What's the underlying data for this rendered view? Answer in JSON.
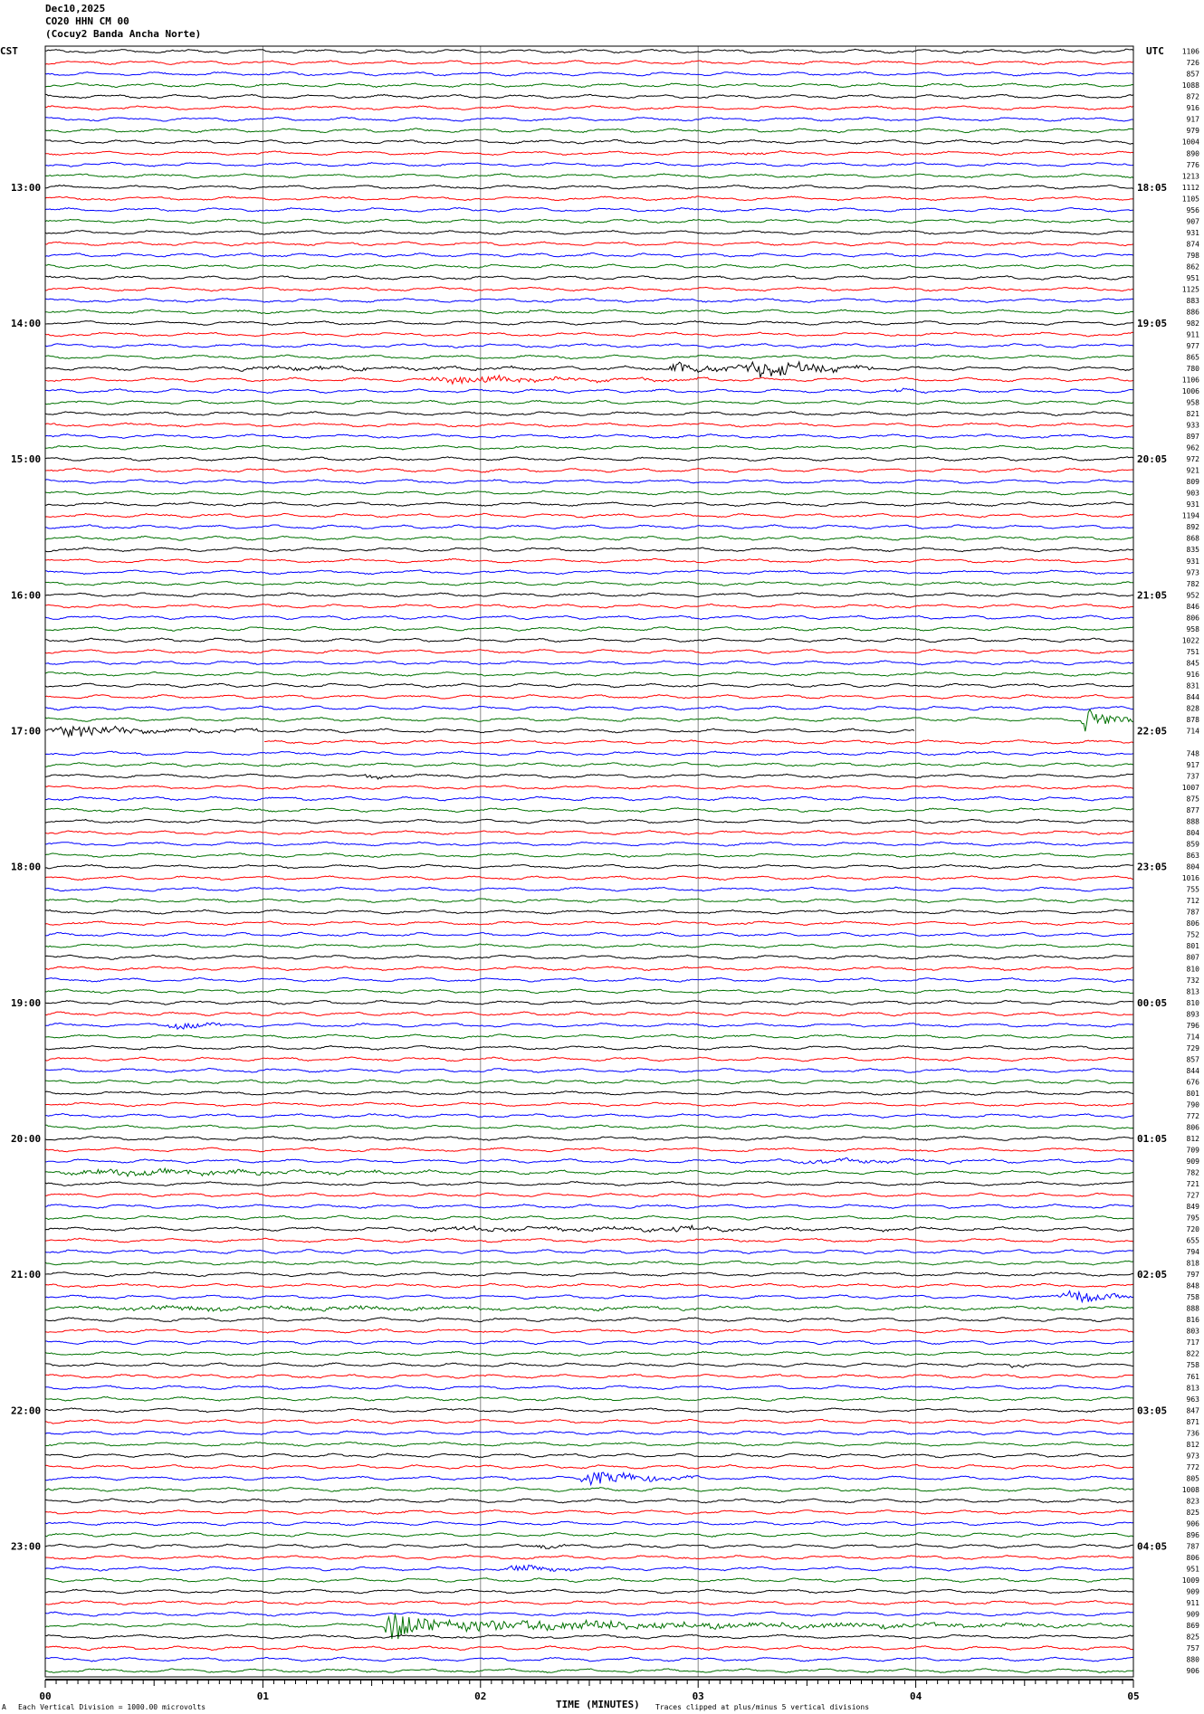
{
  "header": {
    "date": "Dec10,2025",
    "station": "CO20 HHN CM 00",
    "name": "(Cocuy2 Banda Ancha Norte)"
  },
  "chart_data": {
    "type": "line",
    "left_timezone": "CST",
    "right_timezone": "UTC",
    "left_hour_labels": [
      "13:00",
      "14:00",
      "15:00",
      "16:00",
      "17:00",
      "18:00",
      "19:00",
      "20:00",
      "21:00",
      "22:00",
      "23:00"
    ],
    "right_hour_labels": [
      "18:05",
      "19:05",
      "20:05",
      "21:05",
      "22:05",
      "23:05",
      "00:05",
      "01:05",
      "02:05",
      "03:05",
      "04:05"
    ],
    "traces_per_hour": 12,
    "minutes_per_trace": 5,
    "trace_colors": [
      "#000000",
      "#ff0000",
      "#0000ff",
      "#007000"
    ],
    "trace_values": [
      1106,
      726,
      857,
      1088,
      872,
      916,
      917,
      979,
      1004,
      890,
      776,
      1213,
      1112,
      1105,
      956,
      907,
      931,
      874,
      798,
      862,
      951,
      1125,
      883,
      886,
      982,
      911,
      977,
      865,
      780,
      1106,
      1006,
      958,
      821,
      933,
      897,
      962,
      972,
      921,
      809,
      903,
      931,
      1194,
      892,
      868,
      835,
      931,
      973,
      782,
      952,
      846,
      806,
      958,
      1022,
      751,
      845,
      916,
      831,
      844,
      828,
      878,
      714,
      null,
      748,
      917,
      737,
      1007,
      875,
      877,
      888,
      804,
      859,
      863,
      804,
      1016,
      755,
      712,
      787,
      806,
      752,
      801,
      807,
      810,
      732,
      813,
      810,
      893,
      796,
      714,
      729,
      857,
      844,
      676,
      801,
      790,
      772,
      806,
      812,
      709,
      909,
      782,
      721,
      727,
      849,
      795,
      720,
      655,
      794,
      818,
      797,
      848,
      758,
      888,
      816,
      803,
      717,
      822,
      758,
      761,
      813,
      963,
      847,
      871,
      736,
      812,
      973,
      772,
      805,
      1008,
      823,
      825,
      906,
      896,
      787,
      806,
      951,
      1009,
      909,
      911,
      909,
      869,
      825,
      757,
      880,
      906
    ],
    "events": [
      {
        "trace": 9,
        "start": 3.1,
        "end": 3.4,
        "amp": 1.2
      },
      {
        "trace": 23,
        "start": 0.85,
        "end": 0.95,
        "amp": 1.0
      },
      {
        "trace": 23,
        "start": 2.15,
        "end": 2.3,
        "amp": 1.0
      },
      {
        "trace": 28,
        "start": 0.7,
        "end": 4.0,
        "amp": 1.2
      },
      {
        "trace": 28,
        "start": 2.85,
        "end": 3.25,
        "amp": 4
      },
      {
        "trace": 28,
        "start": 3.2,
        "end": 3.8,
        "amp": 7
      },
      {
        "trace": 29,
        "start": 1.7,
        "end": 3.1,
        "amp": 2.5
      },
      {
        "trace": 30,
        "start": 3.9,
        "end": 4.05,
        "amp": 1.2
      },
      {
        "trace": 59,
        "start": 4.75,
        "end": 5.0,
        "amp": 9
      },
      {
        "trace": 60,
        "start": 0.0,
        "end": 1.0,
        "amp": 4
      },
      {
        "trace": 64,
        "start": 1.45,
        "end": 1.7,
        "amp": 1.5
      },
      {
        "trace": 86,
        "start": 0.55,
        "end": 1.0,
        "amp": 2.5
      },
      {
        "trace": 98,
        "start": 3.3,
        "end": 5.0,
        "amp": 1.2
      },
      {
        "trace": 99,
        "start": 0.0,
        "end": 2.6,
        "amp": 1.8
      },
      {
        "trace": 104,
        "start": 1.6,
        "end": 5.0,
        "amp": 1.4
      },
      {
        "trace": 104,
        "start": 2.85,
        "end": 3.2,
        "amp": 2.2
      },
      {
        "trace": 110,
        "start": 4.65,
        "end": 5.0,
        "amp": 6
      },
      {
        "trace": 111,
        "start": 0.0,
        "end": 5.0,
        "amp": 1.4
      },
      {
        "trace": 116,
        "start": 4.42,
        "end": 4.6,
        "amp": 2
      },
      {
        "trace": 126,
        "start": 2.45,
        "end": 3.0,
        "amp": 5
      },
      {
        "trace": 127,
        "start": 0.0,
        "end": 0.1,
        "amp": 1.5
      },
      {
        "trace": 132,
        "start": 2.25,
        "end": 2.45,
        "amp": 1.8
      },
      {
        "trace": 134,
        "start": 2.1,
        "end": 2.6,
        "amp": 2.5
      },
      {
        "trace": 139,
        "start": 1.55,
        "end": 5.0,
        "amp": 4
      },
      {
        "trace": 139,
        "start": 1.55,
        "end": 1.8,
        "amp": 14
      }
    ],
    "gaps": [
      {
        "trace": 60,
        "start": 4.0,
        "end": 5.0
      },
      {
        "trace": 61,
        "start": 0.0,
        "end": 1.0
      }
    ],
    "x_ticks": [
      "00",
      "01",
      "02",
      "03",
      "04",
      "05"
    ],
    "xlim": [
      0,
      5
    ],
    "xlabel": "TIME (MINUTES)",
    "grid": true
  },
  "footer": {
    "scale_note": "Each Vertical Division = 1000.00 microvolts",
    "clip_note": "Traces clipped at plus/minus 5 vertical divisions",
    "corner_mark": "A"
  }
}
